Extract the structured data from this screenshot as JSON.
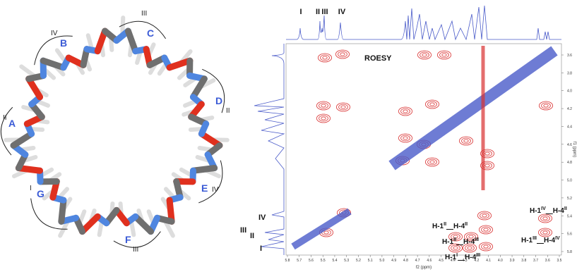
{
  "molecule": {
    "rings": [
      {
        "letter": "A",
        "residue": "II"
      },
      {
        "letter": "B",
        "residue": "IV"
      },
      {
        "letter": "C",
        "residue": "III"
      },
      {
        "letter": "D",
        "residue": "II"
      },
      {
        "letter": "E",
        "residue": "IV"
      },
      {
        "letter": "F",
        "residue": "III"
      },
      {
        "letter": "G",
        "residue": "I"
      }
    ]
  },
  "spectrum": {
    "title": "ROESY",
    "top_peaks": [
      "I",
      "II",
      "III",
      "IV"
    ],
    "left_peaks": [
      "IV",
      "III",
      "II",
      "I"
    ],
    "x_ticks": [
      "5.8",
      "5.7",
      "5.6",
      "5.5",
      "5.4",
      "5.3",
      "5.2",
      "5.1",
      "5.0",
      "4.9",
      "4.8",
      "4.7",
      "4.6",
      "4.5",
      "4.4",
      "4.3",
      "4.2",
      "4.1",
      "4.0",
      "3.9",
      "3.8",
      "3.7",
      "3.6",
      "3.5"
    ],
    "x_label": "f2 (ppm)",
    "y_ticks": [
      "3.6",
      "3.8",
      "4.0",
      "4.2",
      "4.4",
      "4.6",
      "4.8",
      "5.0",
      "5.2",
      "5.4",
      "5.6",
      "5.8"
    ],
    "y_label": "f1 (ppm)",
    "cross_labels": [
      {
        "a": "H-1",
        "a_sup": "II",
        "sep": "—",
        "b": "H-4",
        "b_sup": "II"
      },
      {
        "a": "H-1",
        "a_sup": "II",
        "sep": "—",
        "b": "H-4",
        "b_sup": "III"
      },
      {
        "a": "H-1",
        "a_sup": "I",
        "sep": "—",
        "b": "H-4",
        "b_sup": "III"
      },
      {
        "a": "H-1",
        "a_sup": "IV",
        "sep": "—",
        "b": "H-4",
        "b_sup": "II"
      },
      {
        "a": "H-1",
        "a_sup": "III",
        "sep": "—",
        "b": "H-4",
        "b_sup": "IV"
      }
    ]
  }
}
